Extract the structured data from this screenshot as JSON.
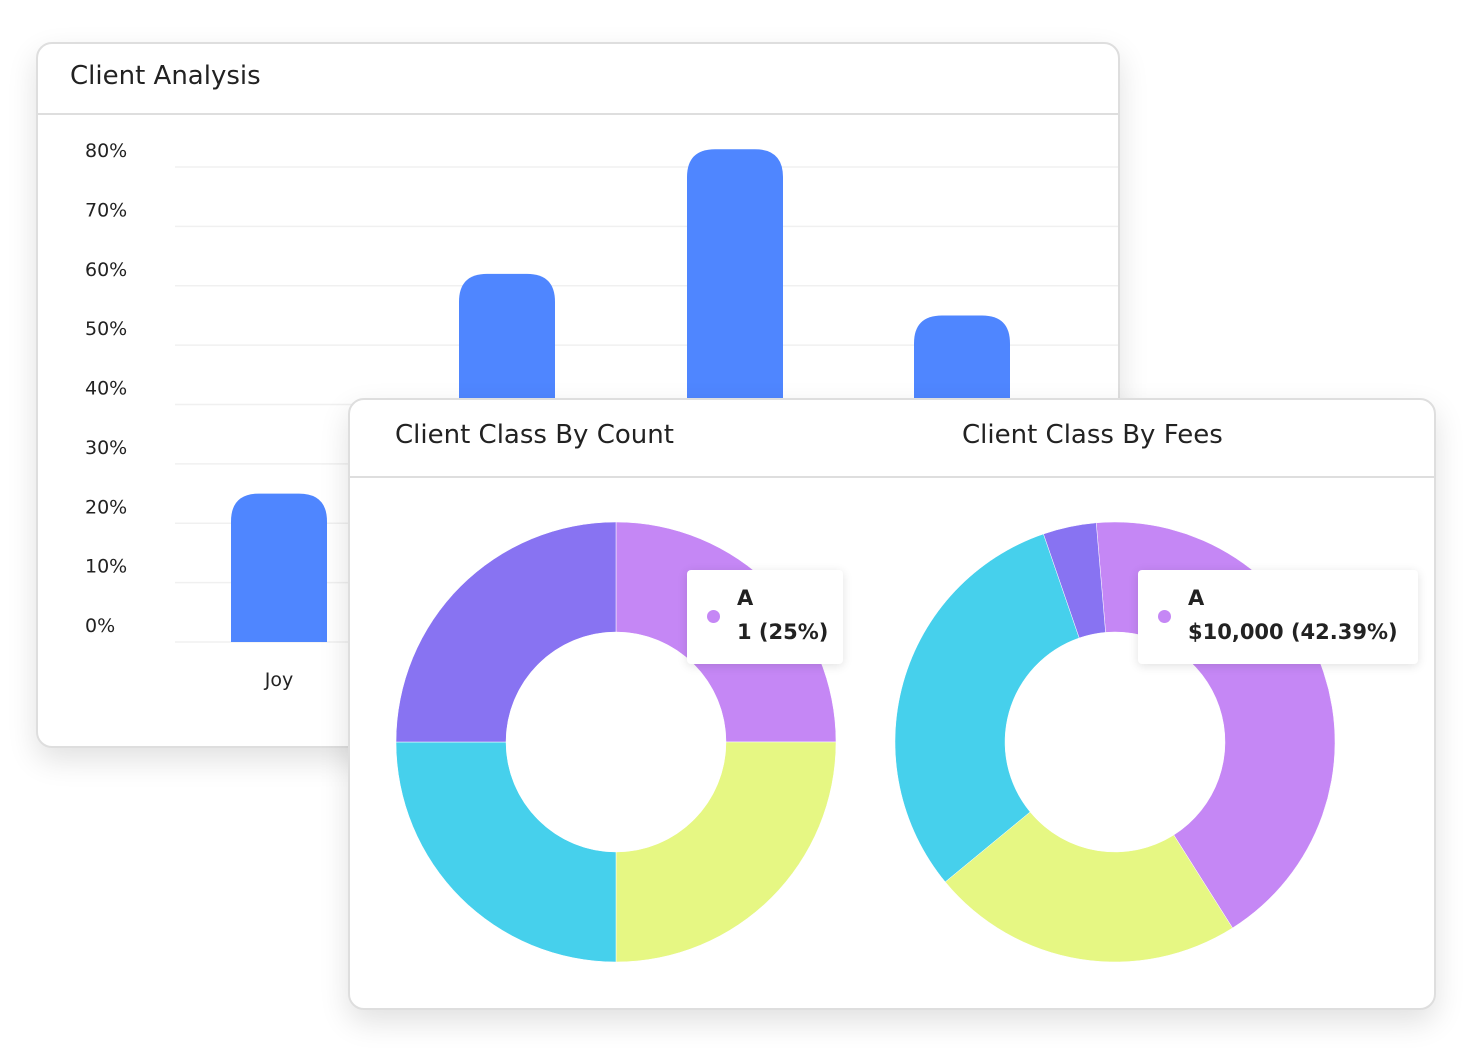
{
  "colors": {
    "bar": "#4F86FF",
    "A": "#C587F5",
    "indigo": "#8873F2",
    "cyan": "#46D0EC",
    "yellow": "#E6F783"
  },
  "bar_card": {
    "title": "Client Analysis"
  },
  "donut_card": {
    "count_title": "Client Class By Count",
    "fees_title": "Client Class By Fees"
  },
  "chart_data": [
    {
      "type": "bar",
      "title": "Client Analysis",
      "categories": [
        "Joy",
        "",
        "",
        ""
      ],
      "values": [
        25,
        62,
        83,
        55
      ],
      "yticks": [
        "0%",
        "10%",
        "20%",
        "30%",
        "40%",
        "50%",
        "60%",
        "70%",
        "80%"
      ],
      "ylim": [
        0,
        80
      ],
      "grid": true
    },
    {
      "type": "pie",
      "title": "Client Class By Count",
      "donut": true,
      "slices": [
        {
          "label": "A",
          "value": 1,
          "percent": 25,
          "color": "#C587F5"
        },
        {
          "value": 1,
          "percent": 25,
          "color": "#E6F783"
        },
        {
          "value": 1,
          "percent": 25,
          "color": "#46D0EC"
        },
        {
          "value": 1,
          "percent": 25,
          "color": "#8873F2"
        }
      ],
      "tooltip": {
        "label": "A",
        "value": "1 (25%)"
      }
    },
    {
      "type": "pie",
      "title": "Client Class By Fees",
      "donut": true,
      "slices": [
        {
          "label": "A",
          "value": 10000,
          "percent": 42.39,
          "color": "#C587F5"
        },
        {
          "percent": 23.0,
          "color": "#E6F783"
        },
        {
          "percent": 30.7,
          "color": "#46D0EC"
        },
        {
          "percent": 3.91,
          "color": "#8873F2"
        }
      ],
      "tooltip": {
        "label": "A",
        "value": "$10,000 (42.39%)"
      }
    }
  ]
}
